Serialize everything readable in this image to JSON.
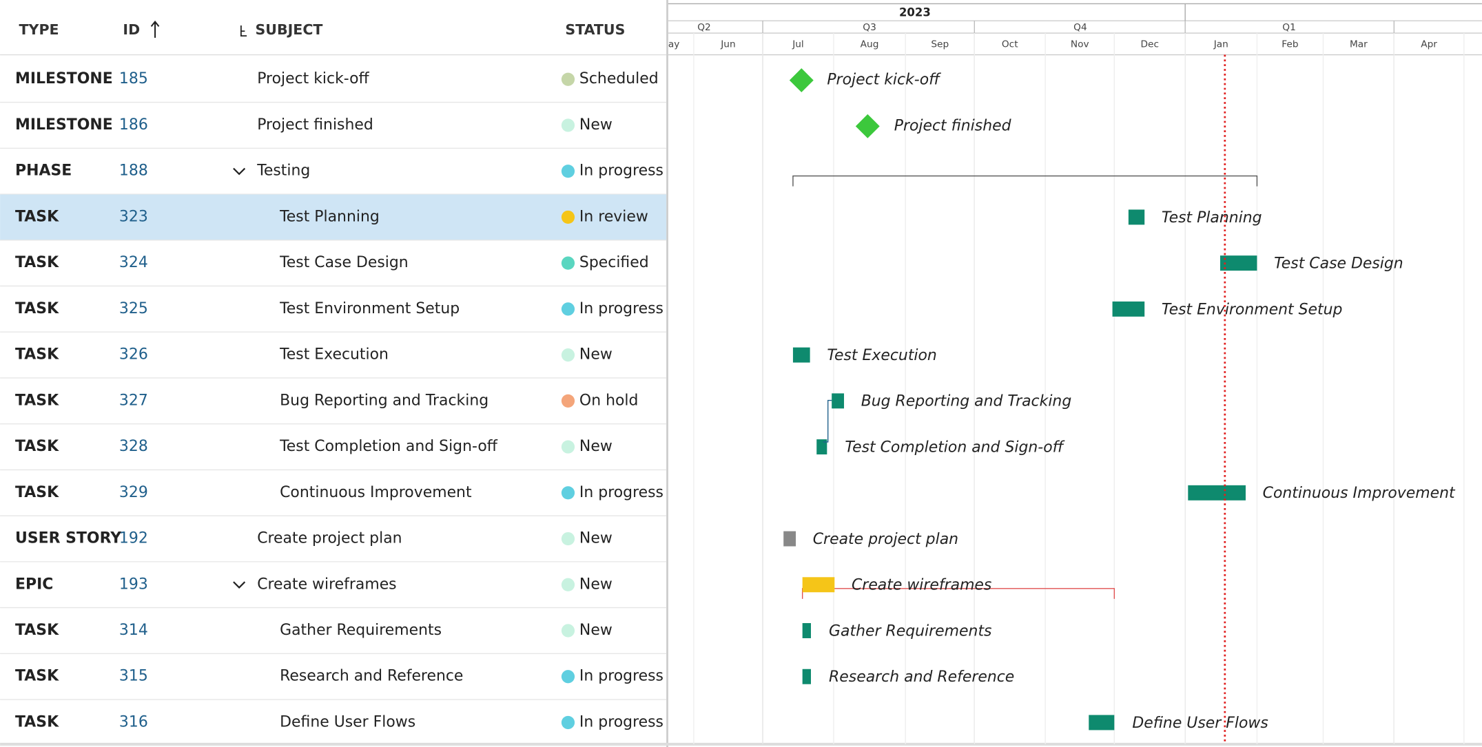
{
  "columns": {
    "type": "TYPE",
    "id": "ID",
    "subject": "SUBJECT",
    "status": "STATUS"
  },
  "rows": [
    {
      "type": "MILESTONE",
      "id": 185,
      "subject": "Project kick-off",
      "status": "Scheduled",
      "type_color": "#3cb043",
      "status_color": "#c5d6a8"
    },
    {
      "type": "MILESTONE",
      "id": 186,
      "subject": "Project finished",
      "status": "New",
      "type_color": "#3cb043",
      "status_color": "#c8f2e0"
    },
    {
      "type": "PHASE",
      "id": 188,
      "subject": "Testing",
      "status": "In progress",
      "type_color": "#1f5f8b",
      "status_color": "#5fcfe0"
    },
    {
      "type": "TASK",
      "id": 323,
      "subject": "Test Planning",
      "status": "In review",
      "type_color": "#0e8a6e",
      "status_color": "#f5c518"
    },
    {
      "type": "TASK",
      "id": 324,
      "subject": "Test Case Design",
      "status": "Specified",
      "type_color": "#0e8a6e",
      "status_color": "#5ad6c0"
    },
    {
      "type": "TASK",
      "id": 325,
      "subject": "Test Environment Setup",
      "status": "In progress",
      "type_color": "#0e8a6e",
      "status_color": "#5fcfe0"
    },
    {
      "type": "TASK",
      "id": 326,
      "subject": "Test Execution",
      "status": "New",
      "type_color": "#0e8a6e",
      "status_color": "#c8f2e0"
    },
    {
      "type": "TASK",
      "id": 327,
      "subject": "Bug Reporting and Tracking",
      "status": "On hold",
      "type_color": "#0e8a6e",
      "status_color": "#f4a57a"
    },
    {
      "type": "TASK",
      "id": 328,
      "subject": "Test Completion and Sign-off",
      "status": "New",
      "type_color": "#0e8a6e",
      "status_color": "#c8f2e0"
    },
    {
      "type": "TASK",
      "id": 329,
      "subject": "Continuous Improvement",
      "status": "In progress",
      "type_color": "#0e8a6e",
      "status_color": "#5fcfe0"
    },
    {
      "type": "USER STORY",
      "id": 192,
      "subject": "Create project plan",
      "status": "New",
      "type_color": "#888888",
      "status_color": "#c8f2e0"
    },
    {
      "type": "EPIC",
      "id": 193,
      "subject": "Create wireframes",
      "status": "New",
      "type_color": "#f5b800",
      "status_color": "#c8f2e0"
    },
    {
      "type": "TASK",
      "id": 314,
      "subject": "Gather Requirements",
      "status": "New",
      "type_color": "#0e8a6e",
      "status_color": "#c8f2e0"
    },
    {
      "type": "TASK",
      "id": 315,
      "subject": "Research and Reference",
      "status": "In progress",
      "type_color": "#0e8a6e",
      "status_color": "#5fcfe0"
    },
    {
      "type": "TASK",
      "id": 316,
      "subject": "Define User Flows",
      "status": "In progress",
      "type_color": "#0e8a6e",
      "status_color": "#5fcfe0"
    }
  ],
  "timeline": {
    "year": "2023",
    "quarters": [
      "Q2",
      "Q3",
      "Q4",
      "Q1"
    ],
    "months": [
      "ay",
      "Jun",
      "Jul",
      "Aug",
      "Sep",
      "Oct",
      "Nov",
      "Dec",
      "Jan",
      "Feb",
      "Mar",
      "Apr"
    ]
  }
}
